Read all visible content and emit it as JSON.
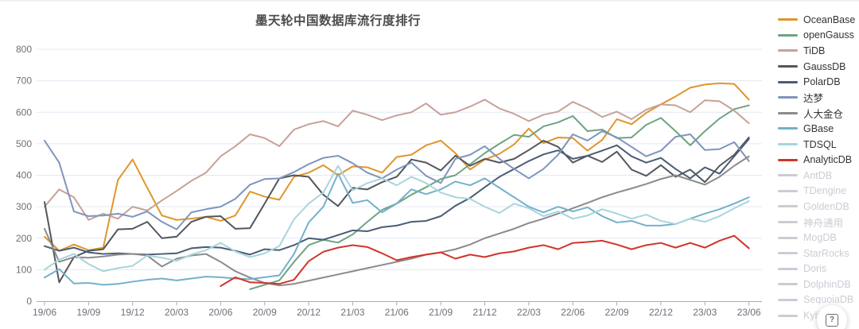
{
  "chart_data": {
    "type": "line",
    "title": "墨天轮中国数据库流行度排行",
    "xlabel": "",
    "ylabel": "",
    "ylim": [
      0,
      800
    ],
    "y_ticks": [
      0,
      100,
      200,
      300,
      400,
      500,
      600,
      700,
      800
    ],
    "grid": true,
    "legend_position": "right",
    "x": [
      "19/06",
      "19/07",
      "19/08",
      "19/09",
      "19/10",
      "19/11",
      "19/12",
      "20/01",
      "20/02",
      "20/03",
      "20/04",
      "20/05",
      "20/06",
      "20/07",
      "20/08",
      "20/09",
      "20/10",
      "20/11",
      "20/12",
      "21/01",
      "21/02",
      "21/03",
      "21/04",
      "21/05",
      "21/06",
      "21/07",
      "21/08",
      "21/09",
      "21/10",
      "21/11",
      "21/12",
      "22/01",
      "22/02",
      "22/03",
      "22/04",
      "22/05",
      "22/06",
      "22/07",
      "22/08",
      "22/09",
      "22/10",
      "22/11",
      "22/12",
      "23/01",
      "23/02",
      "23/03",
      "23/04",
      "23/05",
      "23/06"
    ],
    "x_tick_labels": [
      "19/06",
      "19/09",
      "19/12",
      "20/03",
      "20/06",
      "20/09",
      "20/12",
      "21/03",
      "21/06",
      "21/09",
      "21/12",
      "22/03",
      "22/06",
      "22/09",
      "22/12",
      "23/03",
      "23/06"
    ],
    "series": [
      {
        "name": "OceanBase",
        "color": "#DF962B",
        "enabled": true,
        "values": [
          205,
          160,
          180,
          162,
          170,
          385,
          450,
          360,
          272,
          258,
          262,
          268,
          255,
          272,
          348,
          332,
          322,
          395,
          408,
          432,
          400,
          428,
          425,
          408,
          458,
          465,
          495,
          510,
          470,
          418,
          450,
          468,
          498,
          548,
          502,
          520,
          518,
          478,
          512,
          578,
          562,
          598,
          625,
          650,
          678,
          688,
          692,
          690,
          640
        ]
      },
      {
        "name": "openGauss",
        "color": "#6FA381",
        "enabled": true,
        "values": [
          null,
          null,
          null,
          null,
          null,
          null,
          null,
          null,
          null,
          null,
          null,
          null,
          null,
          null,
          38,
          52,
          66,
          125,
          178,
          195,
          186,
          212,
          252,
          290,
          310,
          338,
          362,
          388,
          400,
          435,
          470,
          500,
          528,
          522,
          555,
          568,
          588,
          540,
          545,
          518,
          520,
          560,
          582,
          540,
          495,
          540,
          580,
          610,
          622
        ]
      },
      {
        "name": "TiDB",
        "color": "#C7A198",
        "enabled": true,
        "values": [
          300,
          355,
          330,
          258,
          278,
          262,
          300,
          288,
          320,
          350,
          382,
          408,
          460,
          492,
          530,
          518,
          492,
          545,
          562,
          572,
          555,
          605,
          592,
          575,
          590,
          600,
          628,
          592,
          600,
          618,
          640,
          612,
          595,
          572,
          592,
          602,
          633,
          612,
          585,
          602,
          578,
          608,
          625,
          622,
          600,
          638,
          635,
          605,
          565
        ]
      },
      {
        "name": "GaussDB",
        "color": "#53565C",
        "enabled": true,
        "values": [
          315,
          60,
          140,
          160,
          165,
          228,
          230,
          252,
          200,
          205,
          252,
          268,
          270,
          230,
          232,
          310,
          390,
          400,
          395,
          338,
          302,
          360,
          355,
          378,
          395,
          450,
          440,
          415,
          462,
          430,
          452,
          440,
          452,
          480,
          510,
          490,
          440,
          462,
          442,
          475,
          418,
          398,
          432,
          395,
          418,
          378,
          430,
          465,
          520
        ]
      },
      {
        "name": "PolarDB",
        "color": "#4A5D75",
        "enabled": true,
        "values": [
          175,
          160,
          170,
          155,
          150,
          152,
          150,
          148,
          150,
          152,
          168,
          172,
          170,
          160,
          148,
          165,
          162,
          178,
          200,
          195,
          210,
          225,
          222,
          235,
          240,
          252,
          255,
          270,
          303,
          328,
          362,
          395,
          420,
          445,
          466,
          479,
          452,
          462,
          478,
          495,
          460,
          440,
          455,
          420,
          390,
          425,
          405,
          460,
          515
        ]
      },
      {
        "name": "达梦",
        "color": "#7E95BD",
        "enabled": true,
        "values": [
          510,
          440,
          285,
          270,
          272,
          278,
          268,
          285,
          252,
          228,
          282,
          292,
          300,
          325,
          370,
          388,
          390,
          410,
          435,
          455,
          462,
          438,
          408,
          390,
          418,
          440,
          398,
          375,
          452,
          465,
          492,
          452,
          420,
          390,
          420,
          465,
          530,
          510,
          540,
          520,
          490,
          460,
          478,
          522,
          530,
          480,
          483,
          505,
          445
        ]
      },
      {
        "name": "人大金仓",
        "color": "#8B8B8B",
        "enabled": true,
        "values": [
          230,
          125,
          140,
          138,
          142,
          148,
          150,
          145,
          110,
          135,
          145,
          150,
          125,
          95,
          75,
          58,
          50,
          55,
          65,
          75,
          85,
          95,
          105,
          115,
          125,
          135,
          148,
          155,
          165,
          180,
          200,
          215,
          230,
          248,
          262,
          278,
          295,
          312,
          330,
          345,
          358,
          372,
          388,
          400,
          385,
          370,
          395,
          430,
          460
        ]
      },
      {
        "name": "GBase",
        "color": "#74B0CD",
        "enabled": true,
        "values": [
          75,
          102,
          56,
          58,
          52,
          55,
          62,
          68,
          72,
          66,
          72,
          78,
          76,
          72,
          70,
          76,
          82,
          150,
          250,
          300,
          405,
          312,
          321,
          282,
          310,
          355,
          340,
          355,
          380,
          368,
          390,
          360,
          330,
          300,
          282,
          300,
          285,
          298,
          270,
          250,
          255,
          240,
          240,
          245,
          262,
          278,
          292,
          310,
          330
        ]
      },
      {
        "name": "TDSQL",
        "color": "#A8D5DB",
        "enabled": true,
        "values": [
          100,
          132,
          150,
          118,
          95,
          105,
          112,
          145,
          138,
          128,
          148,
          162,
          185,
          158,
          140,
          152,
          175,
          260,
          310,
          345,
          430,
          352,
          375,
          390,
          368,
          395,
          375,
          345,
          330,
          325,
          300,
          280,
          310,
          295,
          270,
          285,
          262,
          272,
          292,
          278,
          262,
          275,
          255,
          245,
          262,
          252,
          270,
          295,
          318
        ]
      },
      {
        "name": "AnalyticDB",
        "color": "#D2342B",
        "enabled": true,
        "values": [
          null,
          null,
          null,
          null,
          null,
          null,
          null,
          null,
          null,
          null,
          null,
          null,
          48,
          76,
          60,
          58,
          55,
          68,
          127,
          157,
          170,
          178,
          172,
          152,
          130,
          140,
          148,
          155,
          135,
          148,
          140,
          152,
          158,
          170,
          178,
          165,
          185,
          188,
          192,
          180,
          165,
          178,
          185,
          170,
          185,
          170,
          192,
          208,
          168
        ]
      },
      {
        "name": "AntDB",
        "color": null,
        "enabled": false,
        "values": null
      },
      {
        "name": "TDengine",
        "color": null,
        "enabled": false,
        "values": null
      },
      {
        "name": "GoldenDB",
        "color": null,
        "enabled": false,
        "values": null
      },
      {
        "name": "神舟通用",
        "color": null,
        "enabled": false,
        "values": null
      },
      {
        "name": "MogDB",
        "color": null,
        "enabled": false,
        "values": null
      },
      {
        "name": "StarRocks",
        "color": null,
        "enabled": false,
        "values": null
      },
      {
        "name": "Doris",
        "color": null,
        "enabled": false,
        "values": null
      },
      {
        "name": "DolphinDB",
        "color": null,
        "enabled": false,
        "values": null
      },
      {
        "name": "SequoiaDB",
        "color": null,
        "enabled": false,
        "values": null
      },
      {
        "name": "Kyligence",
        "color": null,
        "enabled": false,
        "values": null
      }
    ],
    "style": {
      "grid_color": "#E3E9F2",
      "axis_color": "#A9AEB8",
      "tick_label_color": "#6E7079",
      "title_color": "#4B4B4B",
      "legend_text_color": "#333333",
      "legend_disabled_color": "#C9CDD4",
      "line_width": 2
    }
  },
  "help_button": {
    "icon": "?"
  }
}
